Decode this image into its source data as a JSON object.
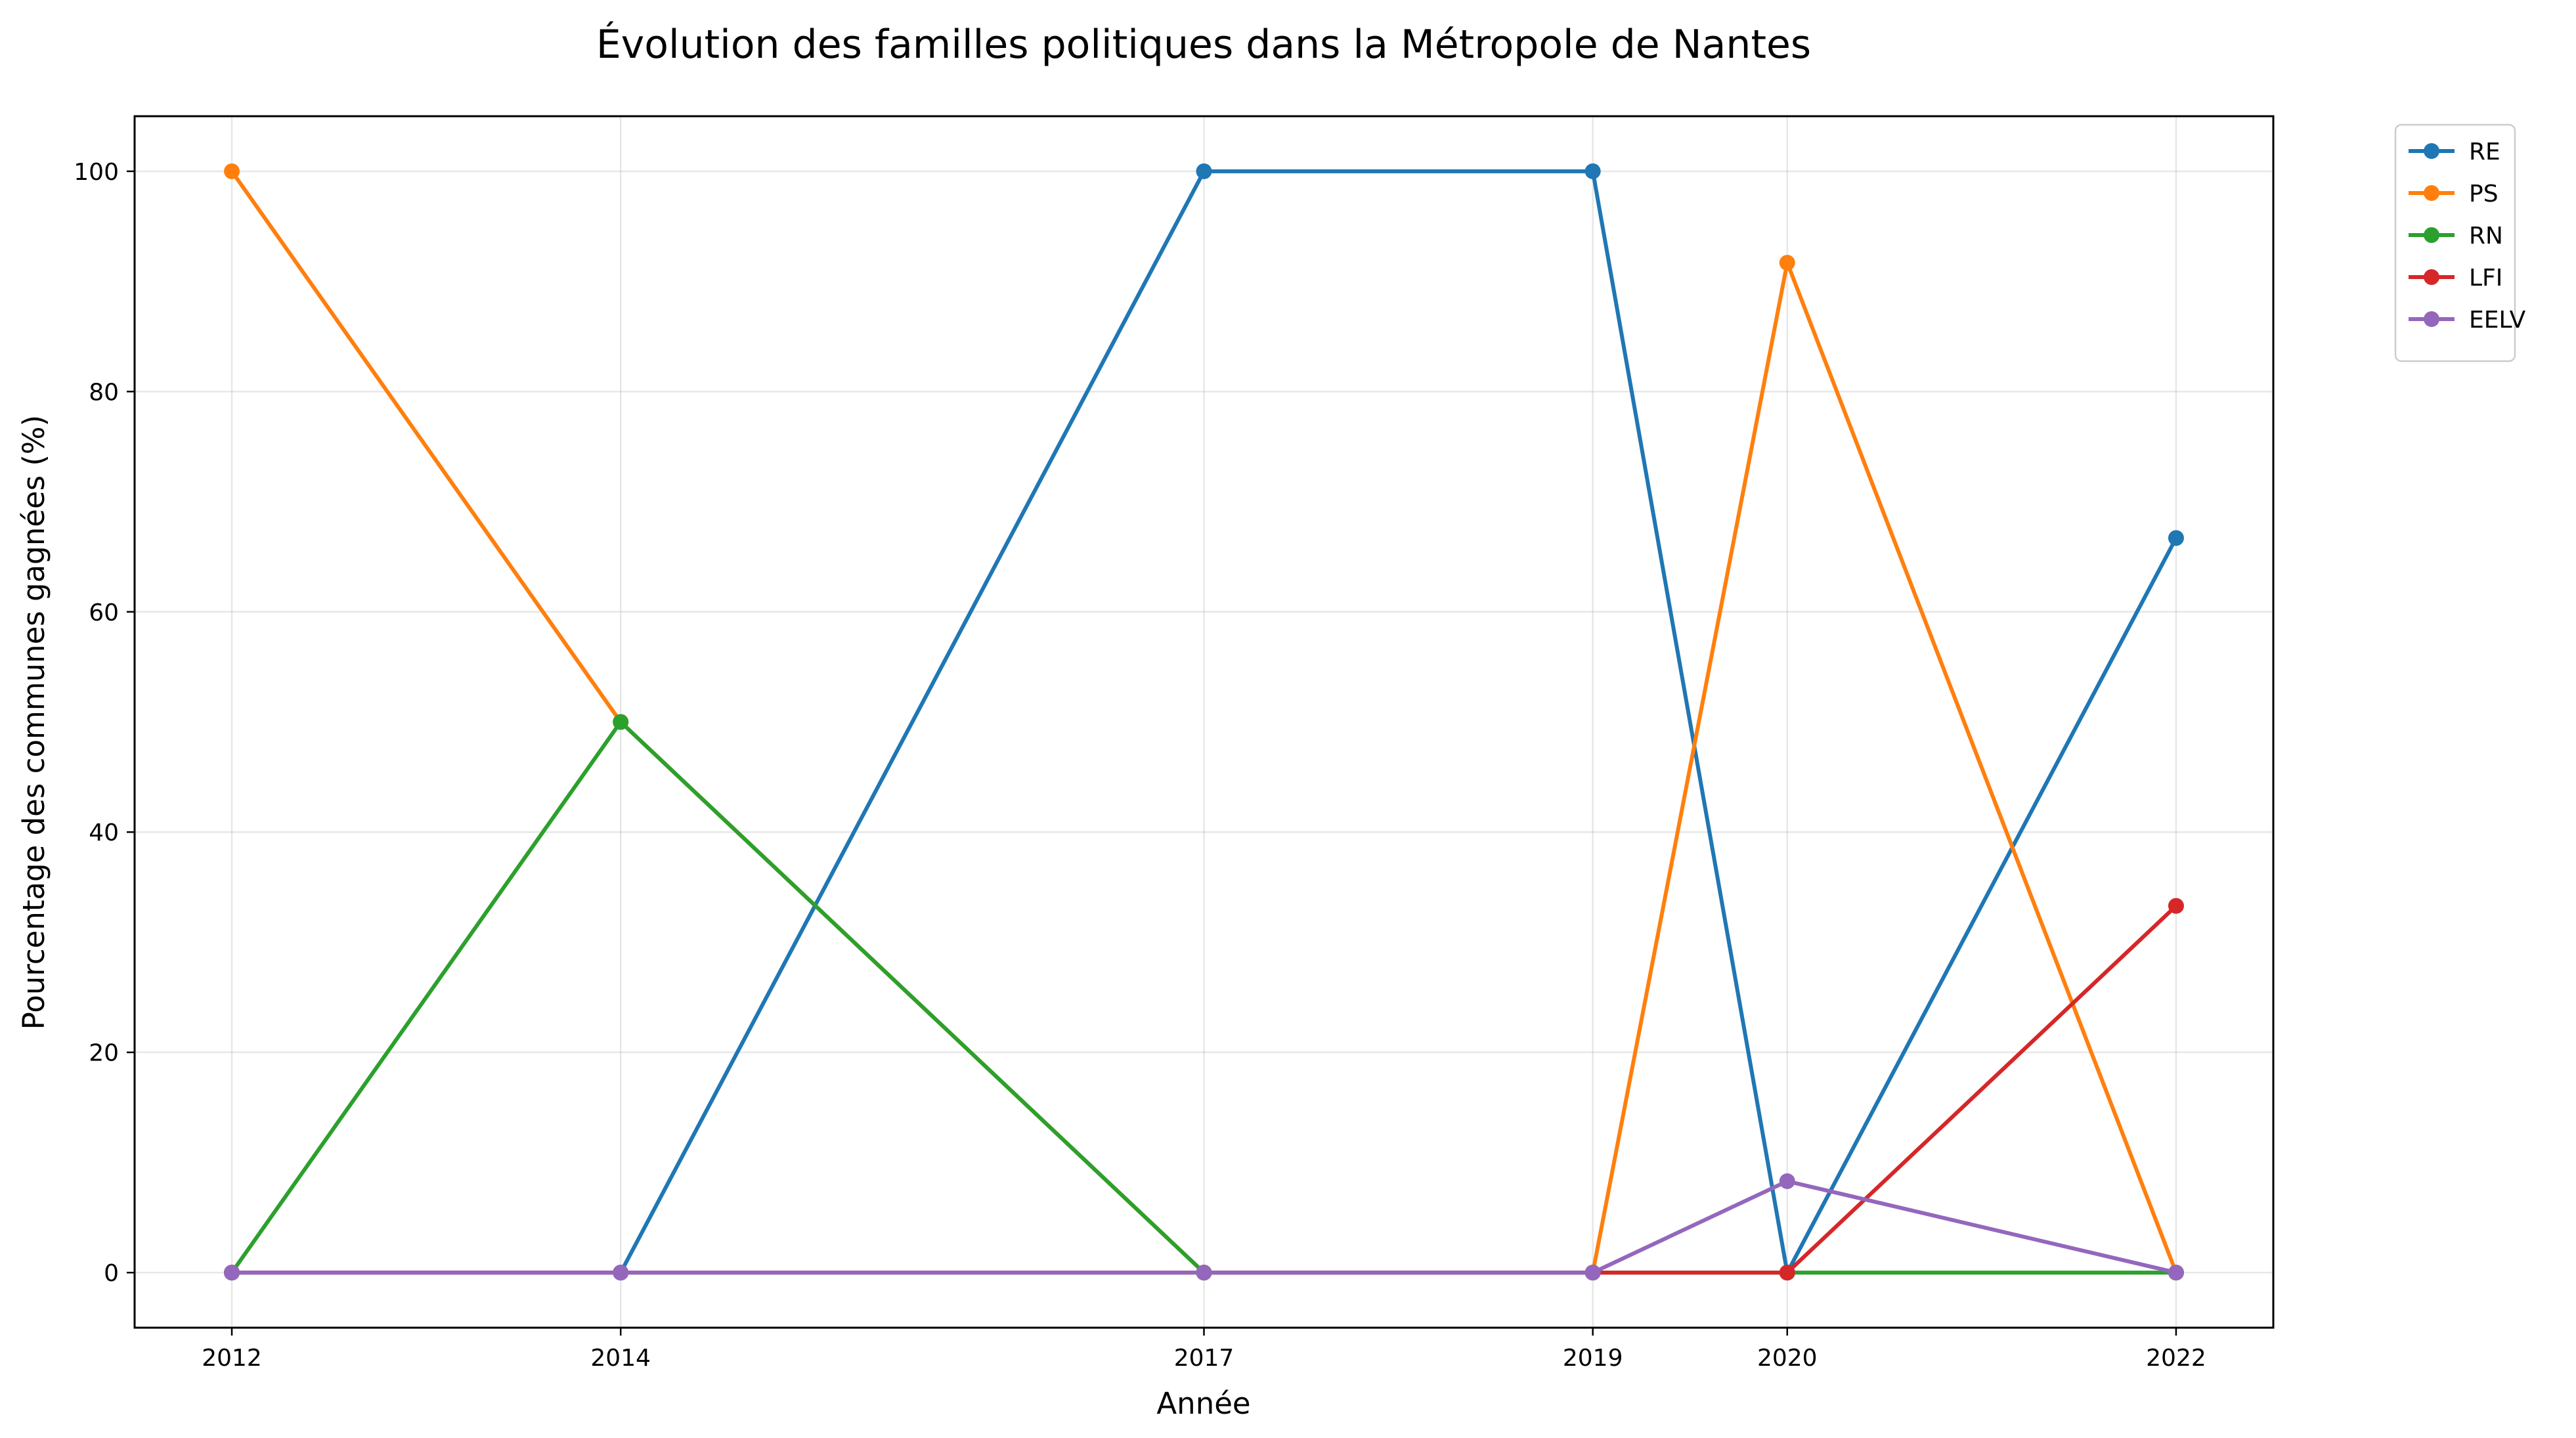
{
  "chart_data": {
    "type": "line",
    "title": "Évolution des familles politiques dans la Métropole de Nantes",
    "xlabel": "Année",
    "ylabel": "Pourcentage des communes gagnées (%)",
    "x": [
      2012,
      2014,
      2017,
      2019,
      2020,
      2022
    ],
    "x_tick_labels": [
      "2012",
      "2014",
      "2017",
      "2019",
      "2020",
      "2022"
    ],
    "xlim": [
      2011.5,
      2022.5
    ],
    "ylim": [
      -5,
      105
    ],
    "y_ticks": [
      0,
      20,
      40,
      60,
      80,
      100
    ],
    "y_tick_labels": [
      "0",
      "20",
      "40",
      "60",
      "80",
      "100"
    ],
    "grid": true,
    "legend_position": "outside-top-right",
    "series": [
      {
        "name": "RE",
        "color": "#1f77b4",
        "values": [
          0,
          0,
          100,
          100,
          0,
          66.7
        ]
      },
      {
        "name": "PS",
        "color": "#ff7f0e",
        "values": [
          100,
          50,
          0,
          0,
          91.7,
          0
        ]
      },
      {
        "name": "RN",
        "color": "#2ca02c",
        "values": [
          0,
          50,
          0,
          0,
          0,
          0
        ]
      },
      {
        "name": "LFI",
        "color": "#d62728",
        "values": [
          0,
          0,
          0,
          0,
          0,
          33.3
        ]
      },
      {
        "name": "EELV",
        "color": "#9467bd",
        "values": [
          0,
          0,
          0,
          0,
          8.3,
          0
        ]
      }
    ]
  }
}
